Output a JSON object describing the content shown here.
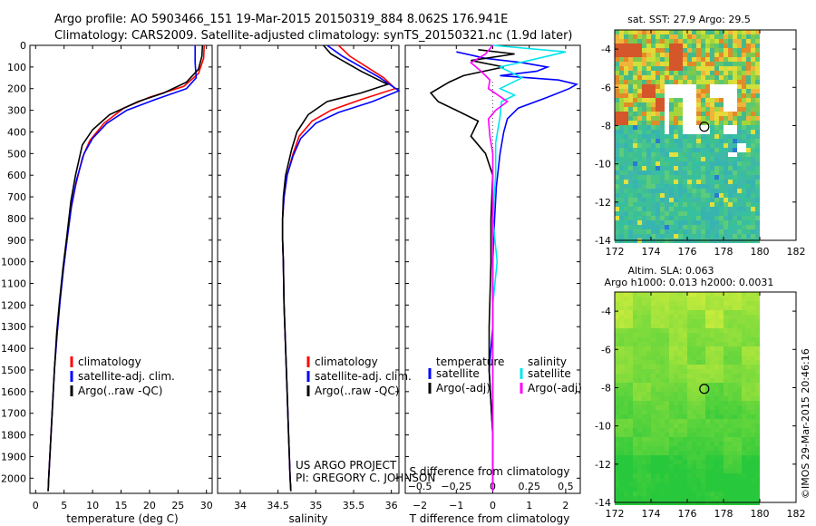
{
  "header": {
    "line1": "Argo profile: AO 5903466_151 19-Mar-2015 20150319_884 8.062S 176.941E",
    "line2": "Climatology: CARS2009. Satellite-adjusted climatology: synTS_20150321.nc (1.9d later)"
  },
  "depth_axis": {
    "ticks": [
      0,
      100,
      200,
      300,
      400,
      500,
      600,
      700,
      800,
      900,
      1000,
      1100,
      1200,
      1300,
      1400,
      1500,
      1600,
      1700,
      1800,
      1900,
      2000
    ],
    "range": [
      0,
      2070
    ]
  },
  "colors": {
    "climatology": "#ff0000",
    "satellite": "#0000ff",
    "argo": "#000000",
    "salinity_sat": "#00e5ee",
    "salinity_argo": "#ff00ff",
    "zero_line": "#555555"
  },
  "chart_data": [
    {
      "name": "temperature-profile",
      "type": "line",
      "xlabel": "temperature (deg C)",
      "xlim": [
        -1,
        31
      ],
      "xticks": [
        0,
        5,
        10,
        15,
        20,
        25,
        30
      ],
      "legend": [
        "climatology",
        "satellite-adj. clim.",
        "Argo(..raw -QC)"
      ],
      "series": [
        {
          "name": "climatology",
          "color": "#ff0000",
          "points": [
            [
              29.6,
              0
            ],
            [
              29.5,
              60
            ],
            [
              28.6,
              130
            ],
            [
              26.0,
              190
            ],
            [
              20.0,
              240
            ],
            [
              15.5,
              290
            ],
            [
              12.0,
              360
            ],
            [
              9.5,
              440
            ],
            [
              8.2,
              520
            ],
            [
              7.0,
              650
            ],
            [
              6.2,
              760
            ],
            [
              5.5,
              900
            ],
            [
              4.8,
              1050
            ],
            [
              4.2,
              1200
            ],
            [
              3.7,
              1350
            ],
            [
              3.3,
              1500
            ],
            [
              2.9,
              1700
            ],
            [
              2.6,
              1850
            ],
            [
              2.3,
              2000
            ],
            [
              2.2,
              2060
            ]
          ]
        },
        {
          "name": "satellite-adj. clim.",
          "color": "#0000ff",
          "points": [
            [
              28.0,
              0
            ],
            [
              28.0,
              80
            ],
            [
              28.2,
              150
            ],
            [
              26.5,
              200
            ],
            [
              21.0,
              250
            ],
            [
              16.0,
              300
            ],
            [
              12.5,
              360
            ],
            [
              10.0,
              430
            ],
            [
              8.5,
              500
            ],
            [
              7.2,
              620
            ],
            [
              6.3,
              740
            ],
            [
              5.6,
              880
            ],
            [
              4.9,
              1030
            ],
            [
              4.3,
              1180
            ],
            [
              3.8,
              1330
            ],
            [
              3.3,
              1500
            ],
            [
              2.9,
              1700
            ],
            [
              2.6,
              1850
            ],
            [
              2.3,
              2000
            ],
            [
              2.2,
              2060
            ]
          ]
        },
        {
          "name": "Argo(..raw -QC)",
          "color": "#000000",
          "points": [
            [
              29.3,
              0
            ],
            [
              29.2,
              50
            ],
            [
              28.6,
              110
            ],
            [
              26.5,
              170
            ],
            [
              22.5,
              220
            ],
            [
              18.0,
              260
            ],
            [
              13.0,
              320
            ],
            [
              10.0,
              390
            ],
            [
              8.2,
              460
            ],
            [
              7.0,
              600
            ],
            [
              6.2,
              720
            ],
            [
              5.5,
              880
            ],
            [
              4.8,
              1030
            ],
            [
              4.2,
              1180
            ],
            [
              3.7,
              1330
            ],
            [
              3.3,
              1500
            ],
            [
              2.9,
              1700
            ],
            [
              2.6,
              1850
            ],
            [
              2.3,
              2000
            ],
            [
              2.2,
              2060
            ]
          ]
        }
      ]
    },
    {
      "name": "salinity-profile",
      "type": "line",
      "xlabel": "salinity",
      "xlim": [
        33.7,
        36.1
      ],
      "xticks": [
        34,
        34.5,
        35,
        35.5,
        36
      ],
      "xticklabels": [
        "34",
        "34.5",
        "35",
        "35.5",
        "36"
      ],
      "legend": [
        "climatology",
        "satellite-adj. clim.",
        "Argo(..raw -QC)"
      ],
      "series": [
        {
          "name": "climatology",
          "color": "#ff0000",
          "points": [
            [
              35.3,
              0
            ],
            [
              35.45,
              50
            ],
            [
              35.9,
              150
            ],
            [
              36.05,
              200
            ],
            [
              35.6,
              250
            ],
            [
              35.2,
              300
            ],
            [
              34.95,
              350
            ],
            [
              34.78,
              420
            ],
            [
              34.7,
              500
            ],
            [
              34.62,
              600
            ],
            [
              34.58,
              700
            ],
            [
              34.56,
              800
            ],
            [
              34.56,
              900
            ],
            [
              34.57,
              1000
            ],
            [
              34.58,
              1200
            ],
            [
              34.6,
              1400
            ],
            [
              34.62,
              1600
            ],
            [
              34.64,
              1800
            ],
            [
              34.66,
              2000
            ],
            [
              34.67,
              2060
            ]
          ]
        },
        {
          "name": "satellite-adj. clim.",
          "color": "#0000ff",
          "points": [
            [
              35.15,
              0
            ],
            [
              35.35,
              50
            ],
            [
              35.85,
              150
            ],
            [
              36.1,
              210
            ],
            [
              35.75,
              260
            ],
            [
              35.3,
              310
            ],
            [
              35.0,
              360
            ],
            [
              34.8,
              430
            ],
            [
              34.7,
              510
            ],
            [
              34.62,
              600
            ],
            [
              34.58,
              700
            ],
            [
              34.56,
              800
            ],
            [
              34.56,
              900
            ],
            [
              34.57,
              1000
            ],
            [
              34.58,
              1200
            ],
            [
              34.6,
              1400
            ],
            [
              34.62,
              1600
            ],
            [
              34.64,
              1800
            ],
            [
              34.66,
              2000
            ],
            [
              34.67,
              2060
            ]
          ]
        },
        {
          "name": "Argo(..raw -QC)",
          "color": "#000000",
          "points": [
            [
              35.1,
              0
            ],
            [
              35.2,
              40
            ],
            [
              35.6,
              120
            ],
            [
              35.95,
              180
            ],
            [
              35.6,
              220
            ],
            [
              35.15,
              260
            ],
            [
              34.9,
              320
            ],
            [
              34.75,
              400
            ],
            [
              34.68,
              480
            ],
            [
              34.6,
              600
            ],
            [
              34.57,
              700
            ],
            [
              34.56,
              800
            ],
            [
              34.56,
              900
            ],
            [
              34.57,
              1000
            ],
            [
              34.58,
              1200
            ],
            [
              34.6,
              1400
            ],
            [
              34.62,
              1600
            ],
            [
              34.64,
              1800
            ],
            [
              34.66,
              2000
            ],
            [
              34.67,
              2060
            ]
          ]
        }
      ]
    },
    {
      "name": "difference-profile",
      "type": "line",
      "xlabel_top": "S difference from climatology",
      "xlabel": "T difference from climatology",
      "xlim": [
        -2.4,
        2.4
      ],
      "t_xticks": [
        -2,
        -1,
        0,
        1,
        2
      ],
      "t_xticklabels": [
        "−2",
        "−1",
        "0",
        "1",
        "2"
      ],
      "s_xticks": [
        -0.5,
        -0.25,
        0,
        0.25,
        0.5
      ],
      "s_xticklabels": [
        "−0.5",
        "−0.25",
        "0",
        "0.25",
        "0.5"
      ],
      "s_scale": 4,
      "legend_titles": [
        "temperature",
        "salinity"
      ],
      "legend": [
        "satellite",
        "Argo(-adj)",
        "satellite",
        "Argo(-adj)"
      ],
      "series": [
        {
          "name": "T satellite",
          "color": "#0000ff",
          "points": [
            [
              -1.0,
              30
            ],
            [
              -0.2,
              60
            ],
            [
              0.8,
              80
            ],
            [
              1.5,
              100
            ],
            [
              1.2,
              120
            ],
            [
              0.2,
              140
            ],
            [
              1.8,
              160
            ],
            [
              2.3,
              180
            ],
            [
              2.1,
              200
            ],
            [
              1.5,
              240
            ],
            [
              0.7,
              290
            ],
            [
              0.4,
              340
            ],
            [
              0.3,
              400
            ],
            [
              0.2,
              500
            ],
            [
              0.1,
              650
            ],
            [
              0.05,
              800
            ],
            [
              0.0,
              1000
            ],
            [
              0.0,
              1300
            ],
            [
              -0.1,
              1500
            ],
            [
              0.0,
              1800
            ],
            [
              0.0,
              2060
            ]
          ]
        },
        {
          "name": "T Argo(-adj)",
          "color": "#000000",
          "points": [
            [
              -0.4,
              20
            ],
            [
              0.6,
              40
            ],
            [
              -0.6,
              70
            ],
            [
              0.3,
              100
            ],
            [
              -0.8,
              140
            ],
            [
              -1.2,
              170
            ],
            [
              -1.7,
              220
            ],
            [
              -1.5,
              260
            ],
            [
              -1.0,
              300
            ],
            [
              -0.4,
              350
            ],
            [
              -0.6,
              420
            ],
            [
              -0.2,
              500
            ],
            [
              0.0,
              600
            ],
            [
              -0.05,
              800
            ],
            [
              -0.05,
              1000
            ],
            [
              -0.1,
              1300
            ],
            [
              -0.1,
              1500
            ],
            [
              0.0,
              1800
            ],
            [
              0.0,
              2060
            ]
          ]
        },
        {
          "name": "S satellite",
          "color": "#00e5ee",
          "points": [
            [
              0.0,
              0
            ],
            [
              0.5,
              30
            ],
            [
              0.25,
              70
            ],
            [
              0.05,
              100
            ],
            [
              0.2,
              150
            ],
            [
              0.05,
              200
            ],
            [
              0.15,
              230
            ],
            [
              0.06,
              260
            ],
            [
              0.05,
              330
            ],
            [
              0.02,
              450
            ],
            [
              0.02,
              600
            ],
            [
              0.0,
              800
            ],
            [
              0.03,
              1000
            ],
            [
              0.0,
              1200
            ],
            [
              0.0,
              1500
            ],
            [
              0.0,
              1800
            ],
            [
              0.0,
              2060
            ]
          ]
        },
        {
          "name": "S Argo(-adj)",
          "color": "#ff00ff",
          "points": [
            [
              0.0,
              0
            ],
            [
              -0.05,
              40
            ],
            [
              -0.15,
              80
            ],
            [
              -0.08,
              120
            ],
            [
              -0.02,
              160
            ],
            [
              -0.03,
              200
            ],
            [
              0.1,
              260
            ],
            [
              0.02,
              300
            ],
            [
              -0.03,
              340
            ],
            [
              -0.02,
              420
            ],
            [
              0.0,
              500
            ],
            [
              0.0,
              700
            ],
            [
              0.0,
              900
            ],
            [
              0.0,
              1100
            ],
            [
              0.0,
              1400
            ],
            [
              0.0,
              1700
            ],
            [
              0.0,
              2060
            ]
          ]
        }
      ]
    }
  ],
  "maps": {
    "sst": {
      "title": "sat. SST: 27.9 Argo: 29.5",
      "x_ticks": [
        172,
        174,
        176,
        178,
        180,
        182
      ],
      "y_ticks": [
        -4,
        -6,
        -8,
        -10,
        -12,
        -14
      ],
      "float_position": {
        "lon": 176.941,
        "lat": -8.062
      }
    },
    "sla": {
      "title_line1": "Altim. SLA: 0.063",
      "title_line2": "Argo h1000: 0.013 h2000: 0.0031",
      "x_ticks": [
        172,
        174,
        176,
        178,
        180,
        182
      ],
      "y_ticks": [
        -4,
        -6,
        -8,
        -10,
        -12,
        -14
      ],
      "float_position": {
        "lon": 176.941,
        "lat": -8.062
      }
    }
  },
  "annotation": {
    "project": "US ARGO PROJECT",
    "pi": "PI: GREGORY C. JOHNSON",
    "imos": "©IMOS 29-Mar-2015 20:46:16"
  }
}
